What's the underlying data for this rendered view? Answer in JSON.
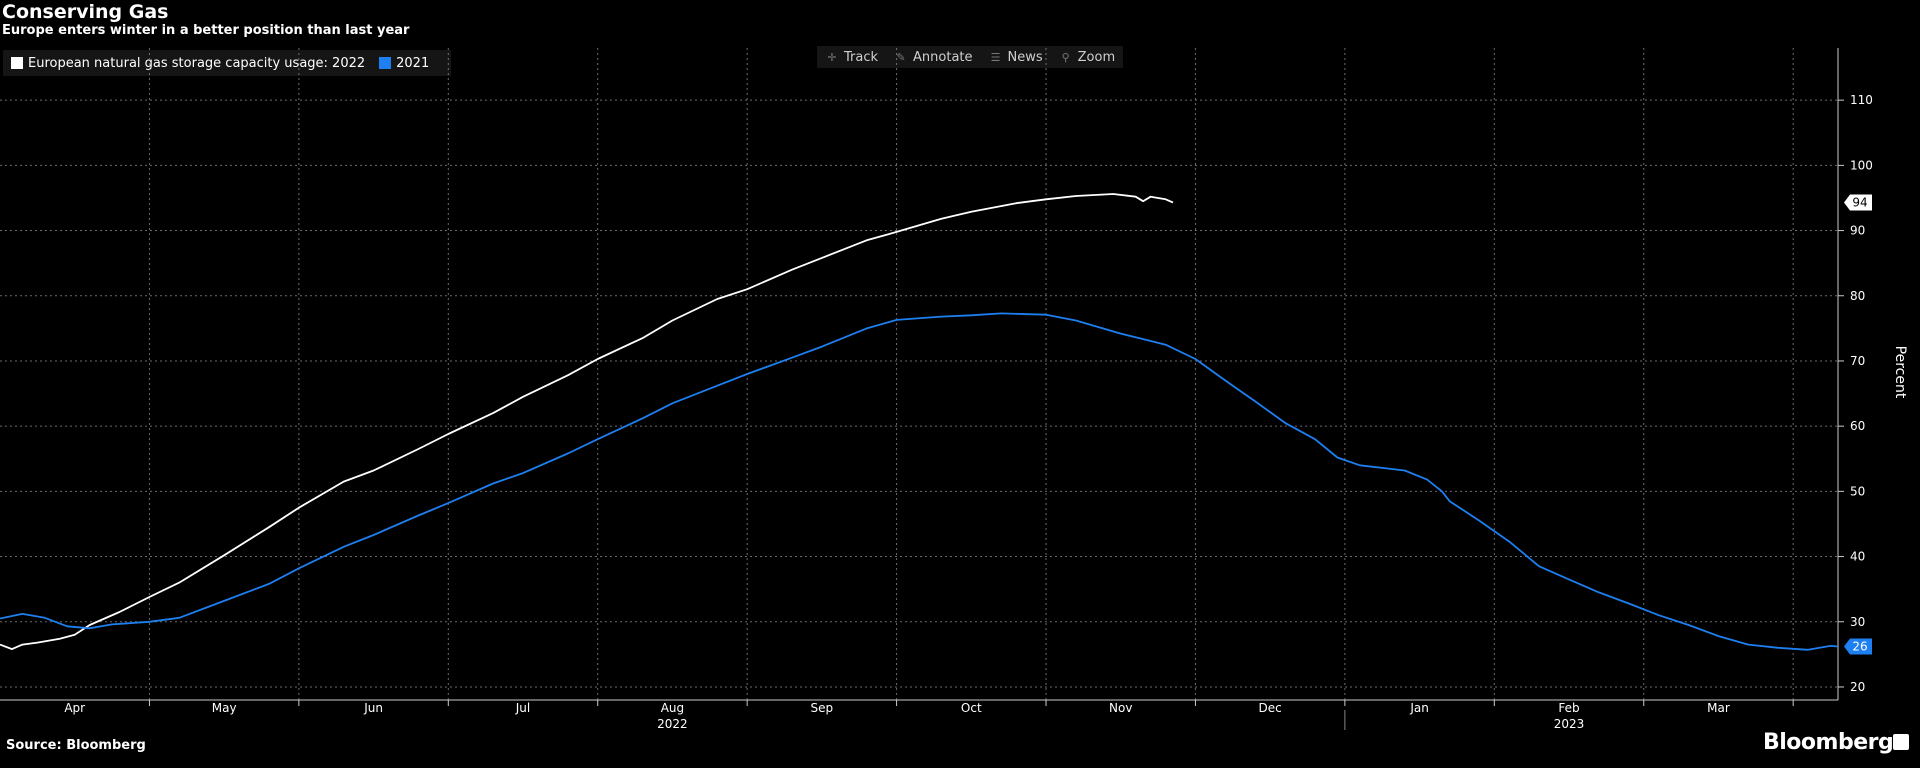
{
  "title": "Conserving Gas",
  "subtitle": "Europe enters winter in a better position than last year",
  "source": "Source: Bloomberg",
  "brand": "Bloomberg",
  "toolbar": {
    "track": "Track",
    "annotate": "Annotate",
    "news": "News",
    "zoom": "Zoom"
  },
  "legend": {
    "series_2022": "European natural gas storage capacity usage: 2022",
    "series_2021": "2021"
  },
  "colors": {
    "s2022": "#ffffff",
    "s2021": "#1e7ff0",
    "grid": "#9a9a9a",
    "background": "#000000"
  },
  "chart_data": {
    "type": "line",
    "ylabel": "Percent",
    "ylim": [
      18,
      118
    ],
    "yticks": [
      20,
      30,
      40,
      50,
      60,
      70,
      80,
      90,
      100,
      110
    ],
    "xlim": [
      0,
      12.3
    ],
    "month_ticks": [
      {
        "label": "Apr",
        "x": 0.5
      },
      {
        "label": "May",
        "x": 1.5
      },
      {
        "label": "Jun",
        "x": 2.5
      },
      {
        "label": "Jul",
        "x": 3.5
      },
      {
        "label": "Aug",
        "x": 4.5
      },
      {
        "label": "Sep",
        "x": 5.5
      },
      {
        "label": "Oct",
        "x": 6.5
      },
      {
        "label": "Nov",
        "x": 7.5
      },
      {
        "label": "Dec",
        "x": 8.5
      },
      {
        "label": "Jan",
        "x": 9.5
      },
      {
        "label": "Feb",
        "x": 10.5
      },
      {
        "label": "Mar",
        "x": 11.5
      }
    ],
    "year_labels": [
      {
        "label": "2022",
        "x": 4.5
      },
      {
        "label": "2023",
        "x": 10.5
      }
    ],
    "series": [
      {
        "name": "European natural gas storage capacity usage: 2022",
        "last_value_label": "94",
        "points": [
          [
            0,
            26.5
          ],
          [
            0.08,
            25.8
          ],
          [
            0.15,
            26.5
          ],
          [
            0.25,
            26.8
          ],
          [
            0.4,
            27.4
          ],
          [
            0.5,
            28.0
          ],
          [
            0.6,
            29.5
          ],
          [
            0.8,
            31.5
          ],
          [
            1.0,
            33.8
          ],
          [
            1.2,
            36.0
          ],
          [
            1.5,
            40.2
          ],
          [
            1.8,
            44.5
          ],
          [
            2.0,
            47.5
          ],
          [
            2.3,
            51.5
          ],
          [
            2.5,
            53.2
          ],
          [
            2.8,
            56.5
          ],
          [
            3.0,
            58.8
          ],
          [
            3.3,
            62.0
          ],
          [
            3.5,
            64.5
          ],
          [
            3.8,
            67.8
          ],
          [
            4.0,
            70.3
          ],
          [
            4.3,
            73.5
          ],
          [
            4.5,
            76.2
          ],
          [
            4.8,
            79.5
          ],
          [
            5.0,
            81.0
          ],
          [
            5.3,
            84.0
          ],
          [
            5.5,
            85.8
          ],
          [
            5.8,
            88.5
          ],
          [
            6.0,
            89.8
          ],
          [
            6.3,
            91.8
          ],
          [
            6.5,
            92.9
          ],
          [
            6.8,
            94.2
          ],
          [
            7.0,
            94.8
          ],
          [
            7.2,
            95.3
          ],
          [
            7.45,
            95.6
          ],
          [
            7.6,
            95.2
          ],
          [
            7.65,
            94.5
          ],
          [
            7.7,
            95.2
          ],
          [
            7.8,
            94.8
          ],
          [
            7.85,
            94.3
          ]
        ]
      },
      {
        "name": "2021",
        "last_value_label": "26",
        "points": [
          [
            0,
            30.5
          ],
          [
            0.15,
            31.2
          ],
          [
            0.3,
            30.6
          ],
          [
            0.45,
            29.3
          ],
          [
            0.6,
            29.0
          ],
          [
            0.75,
            29.6
          ],
          [
            1.0,
            30.0
          ],
          [
            1.2,
            30.6
          ],
          [
            1.5,
            33.2
          ],
          [
            1.8,
            35.8
          ],
          [
            2.0,
            38.2
          ],
          [
            2.3,
            41.5
          ],
          [
            2.5,
            43.3
          ],
          [
            2.8,
            46.3
          ],
          [
            3.0,
            48.2
          ],
          [
            3.3,
            51.2
          ],
          [
            3.5,
            52.8
          ],
          [
            3.8,
            55.8
          ],
          [
            4.0,
            58.0
          ],
          [
            4.3,
            61.2
          ],
          [
            4.5,
            63.5
          ],
          [
            4.8,
            66.2
          ],
          [
            5.0,
            68.0
          ],
          [
            5.3,
            70.5
          ],
          [
            5.5,
            72.2
          ],
          [
            5.8,
            75.0
          ],
          [
            6.0,
            76.3
          ],
          [
            6.3,
            76.8
          ],
          [
            6.5,
            77.0
          ],
          [
            6.7,
            77.3
          ],
          [
            7.0,
            77.1
          ],
          [
            7.2,
            76.2
          ],
          [
            7.5,
            74.2
          ],
          [
            7.8,
            72.5
          ],
          [
            8.0,
            70.3
          ],
          [
            8.2,
            67.0
          ],
          [
            8.4,
            63.8
          ],
          [
            8.6,
            60.5
          ],
          [
            8.8,
            58.0
          ],
          [
            8.95,
            55.2
          ],
          [
            9.1,
            54.0
          ],
          [
            9.25,
            53.6
          ],
          [
            9.4,
            53.2
          ],
          [
            9.55,
            51.8
          ],
          [
            9.65,
            50.0
          ],
          [
            9.7,
            48.5
          ],
          [
            9.9,
            45.5
          ],
          [
            10.1,
            42.3
          ],
          [
            10.3,
            38.5
          ],
          [
            10.5,
            36.5
          ],
          [
            10.7,
            34.5
          ],
          [
            10.9,
            32.8
          ],
          [
            11.1,
            31.0
          ],
          [
            11.3,
            29.5
          ],
          [
            11.5,
            27.8
          ],
          [
            11.7,
            26.5
          ],
          [
            11.9,
            26.0
          ],
          [
            12.1,
            25.7
          ],
          [
            12.25,
            26.3
          ],
          [
            12.3,
            26.2
          ]
        ]
      }
    ]
  }
}
